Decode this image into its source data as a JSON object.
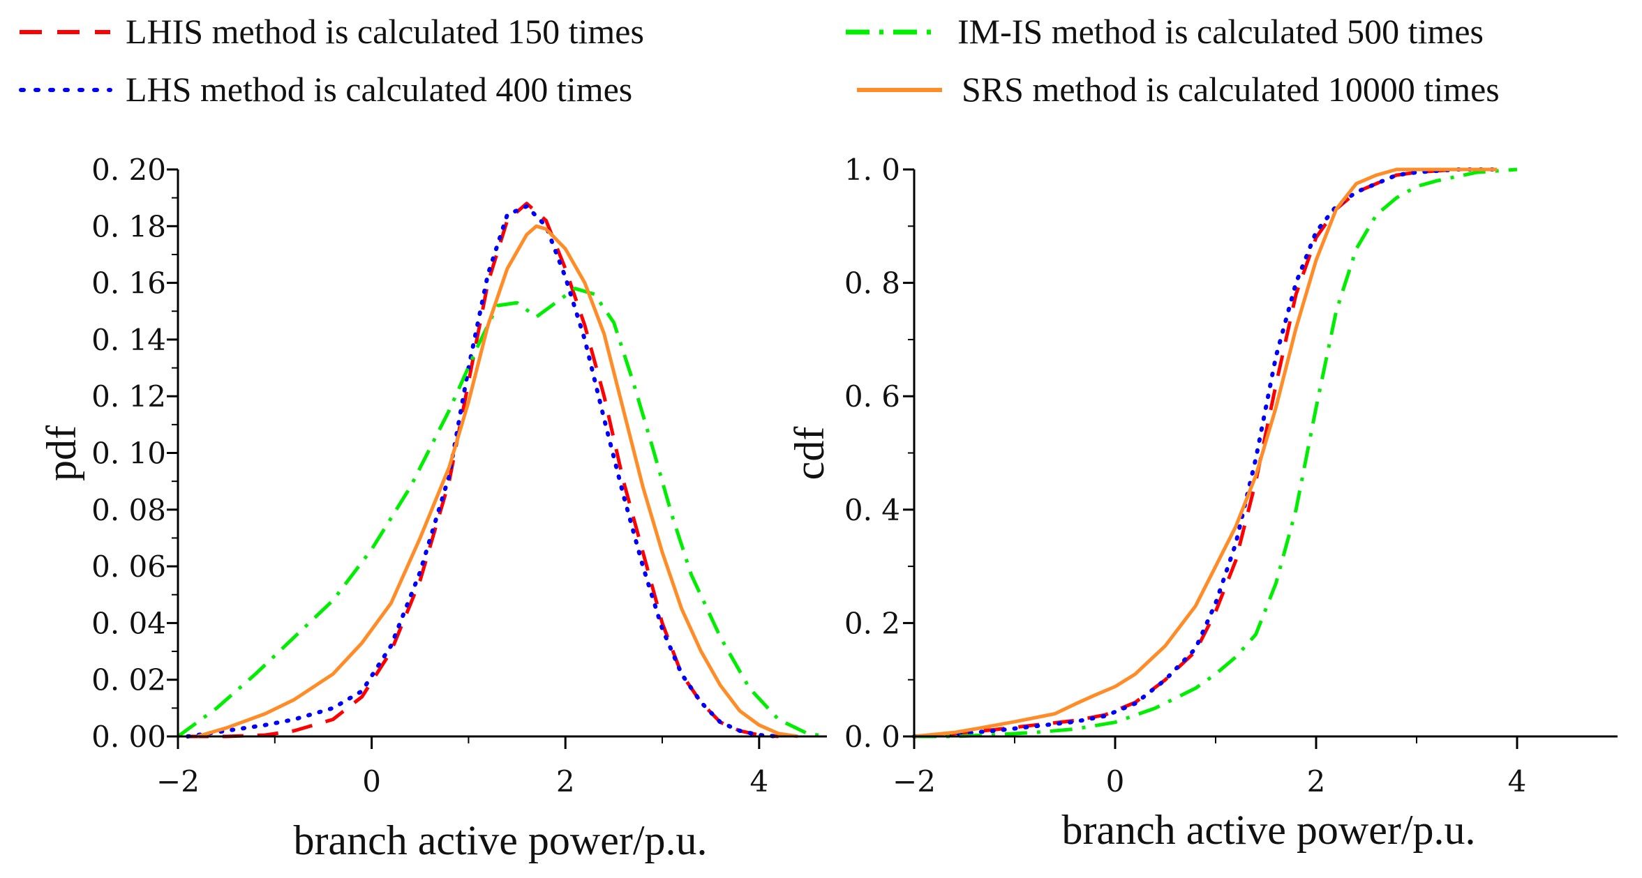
{
  "chart_data": [
    {
      "type": "line",
      "panel": "left",
      "title": "",
      "xlabel": "branch active power/p.u.",
      "ylabel": "pdf",
      "xlim": [
        -2,
        4.7
      ],
      "ylim": [
        0,
        0.2
      ],
      "xticks": [
        -2,
        0,
        2,
        4
      ],
      "xtick_labels": [
        "−2",
        "0",
        "2",
        "4"
      ],
      "yticks": [
        0,
        0.02,
        0.04,
        0.06,
        0.08,
        0.1,
        0.12,
        0.14,
        0.16,
        0.18,
        0.2
      ],
      "ytick_labels": [
        "0. 00",
        "0. 02",
        "0. 04",
        "0. 06",
        "0. 08",
        "0. 10",
        "0. 12",
        "0. 14",
        "0. 16",
        "0. 18",
        "0. 20"
      ],
      "grid": false,
      "series": [
        {
          "name": "LHIS method is calculated 150 times",
          "color": "#ff0000",
          "style": "dash",
          "x": [
            -1.9,
            -1.5,
            -1.1,
            -0.8,
            -0.4,
            -0.1,
            0.2,
            0.5,
            0.8,
            1.0,
            1.2,
            1.4,
            1.6,
            1.8,
            2.0,
            2.2,
            2.4,
            2.6,
            2.8,
            3.0,
            3.2,
            3.4,
            3.6,
            3.8,
            4.0,
            4.2
          ],
          "y": [
            0.0,
            0.0,
            0.0005,
            0.002,
            0.006,
            0.014,
            0.03,
            0.055,
            0.09,
            0.125,
            0.16,
            0.182,
            0.188,
            0.182,
            0.165,
            0.145,
            0.12,
            0.09,
            0.065,
            0.04,
            0.022,
            0.012,
            0.005,
            0.002,
            0.0005,
            0.0
          ]
        },
        {
          "name": "LHS method is calculated 400 times",
          "color": "#0000ff",
          "style": "dot",
          "x": [
            -1.9,
            -1.5,
            -1.1,
            -0.8,
            -0.4,
            -0.1,
            0.2,
            0.5,
            0.8,
            1.0,
            1.2,
            1.4,
            1.6,
            1.8,
            2.0,
            2.2,
            2.4,
            2.6,
            2.8,
            3.0,
            3.2,
            3.4,
            3.6,
            3.8,
            4.0,
            4.2
          ],
          "y": [
            0.0,
            0.002,
            0.004,
            0.006,
            0.01,
            0.016,
            0.032,
            0.058,
            0.092,
            0.13,
            0.163,
            0.184,
            0.187,
            0.18,
            0.162,
            0.14,
            0.112,
            0.085,
            0.06,
            0.038,
            0.022,
            0.012,
            0.005,
            0.002,
            0.0005,
            0.0
          ]
        },
        {
          "name": "IM-IS method is calculated 500 times",
          "color": "#00ee00",
          "style": "dashdot",
          "x": [
            -2.0,
            -1.6,
            -1.2,
            -0.8,
            -0.4,
            0.0,
            0.4,
            0.8,
            1.1,
            1.3,
            1.5,
            1.7,
            1.9,
            2.1,
            2.3,
            2.5,
            2.7,
            2.9,
            3.1,
            3.3,
            3.6,
            3.9,
            4.2,
            4.5,
            4.7
          ],
          "y": [
            0.0,
            0.01,
            0.022,
            0.035,
            0.048,
            0.066,
            0.088,
            0.115,
            0.138,
            0.152,
            0.153,
            0.148,
            0.153,
            0.158,
            0.156,
            0.146,
            0.125,
            0.102,
            0.078,
            0.057,
            0.035,
            0.017,
            0.006,
            0.001,
            0.0
          ]
        },
        {
          "name": "SRS method is calculated 10000 times",
          "color": "#ff8c26",
          "style": "solid",
          "x": [
            -1.8,
            -1.5,
            -1.1,
            -0.8,
            -0.4,
            -0.1,
            0.2,
            0.5,
            0.8,
            1.0,
            1.2,
            1.4,
            1.6,
            1.7,
            1.8,
            2.0,
            2.2,
            2.4,
            2.6,
            2.8,
            3.0,
            3.2,
            3.4,
            3.6,
            3.8,
            4.0,
            4.2,
            4.4
          ],
          "y": [
            0.0,
            0.003,
            0.008,
            0.013,
            0.022,
            0.033,
            0.047,
            0.07,
            0.095,
            0.118,
            0.145,
            0.165,
            0.177,
            0.18,
            0.179,
            0.172,
            0.16,
            0.142,
            0.115,
            0.088,
            0.065,
            0.045,
            0.03,
            0.018,
            0.009,
            0.004,
            0.001,
            0.0
          ]
        }
      ]
    },
    {
      "type": "line",
      "panel": "right",
      "title": "",
      "xlabel": "branch active power/p.u.",
      "ylabel": "cdf",
      "xlim": [
        -2,
        5
      ],
      "ylim": [
        0,
        1.0
      ],
      "xticks": [
        -2,
        0,
        2,
        4
      ],
      "xtick_labels": [
        "−2",
        "0",
        "2",
        "4"
      ],
      "yticks": [
        0,
        0.2,
        0.4,
        0.6,
        0.8,
        1.0
      ],
      "ytick_labels": [
        "0. 0",
        "0. 2",
        "0. 4",
        "0. 6",
        "0. 8",
        "1. 0"
      ],
      "grid": false,
      "series": [
        {
          "name": "LHIS method is calculated 150 times",
          "color": "#ff0000",
          "style": "dash",
          "x": [
            -2.0,
            -1.6,
            -1.2,
            -0.8,
            -0.4,
            -0.1,
            0.2,
            0.5,
            0.8,
            1.0,
            1.2,
            1.4,
            1.6,
            1.8,
            2.0,
            2.2,
            2.4,
            2.6,
            2.8,
            3.0,
            3.4,
            3.8
          ],
          "y": [
            0.0,
            0.005,
            0.012,
            0.02,
            0.028,
            0.038,
            0.06,
            0.1,
            0.15,
            0.22,
            0.31,
            0.45,
            0.62,
            0.78,
            0.88,
            0.93,
            0.96,
            0.975,
            0.99,
            0.995,
            1.0,
            1.0
          ]
        },
        {
          "name": "LHS method is calculated 400 times",
          "color": "#0000ff",
          "style": "dot",
          "x": [
            -2.0,
            -1.6,
            -1.2,
            -0.8,
            -0.4,
            -0.1,
            0.2,
            0.5,
            0.8,
            1.0,
            1.2,
            1.4,
            1.6,
            1.8,
            2.0,
            2.2,
            2.4,
            2.6,
            2.8,
            3.0,
            3.4,
            3.8
          ],
          "y": [
            0.0,
            0.004,
            0.01,
            0.018,
            0.026,
            0.036,
            0.058,
            0.1,
            0.155,
            0.235,
            0.34,
            0.49,
            0.67,
            0.8,
            0.89,
            0.935,
            0.96,
            0.975,
            0.99,
            0.995,
            1.0,
            1.0
          ]
        },
        {
          "name": "IM-IS method is calculated 500 times",
          "color": "#00ee00",
          "style": "dashdot",
          "x": [
            -2.0,
            -1.6,
            -1.2,
            -0.8,
            -0.4,
            0.0,
            0.4,
            0.8,
            1.0,
            1.2,
            1.4,
            1.6,
            1.8,
            2.0,
            2.2,
            2.4,
            2.6,
            2.8,
            3.0,
            3.2,
            3.6,
            4.0
          ],
          "y": [
            0.0,
            0.0,
            0.003,
            0.007,
            0.013,
            0.025,
            0.05,
            0.085,
            0.11,
            0.14,
            0.18,
            0.27,
            0.4,
            0.58,
            0.75,
            0.86,
            0.92,
            0.95,
            0.97,
            0.98,
            0.995,
            1.0
          ]
        },
        {
          "name": "SRS method is calculated 10000 times",
          "color": "#ff8c26",
          "style": "solid",
          "x": [
            -2.0,
            -1.6,
            -1.4,
            -1.0,
            -0.6,
            -0.4,
            -0.2,
            0.0,
            0.2,
            0.5,
            0.8,
            1.0,
            1.2,
            1.4,
            1.6,
            1.8,
            2.0,
            2.2,
            2.4,
            2.6,
            2.8,
            3.0,
            3.4,
            3.8
          ],
          "y": [
            0.0,
            0.007,
            0.013,
            0.026,
            0.04,
            0.057,
            0.073,
            0.088,
            0.11,
            0.16,
            0.23,
            0.3,
            0.37,
            0.46,
            0.58,
            0.72,
            0.84,
            0.93,
            0.975,
            0.99,
            1.0,
            1.0,
            1.0,
            1.0
          ]
        }
      ]
    }
  ]
}
